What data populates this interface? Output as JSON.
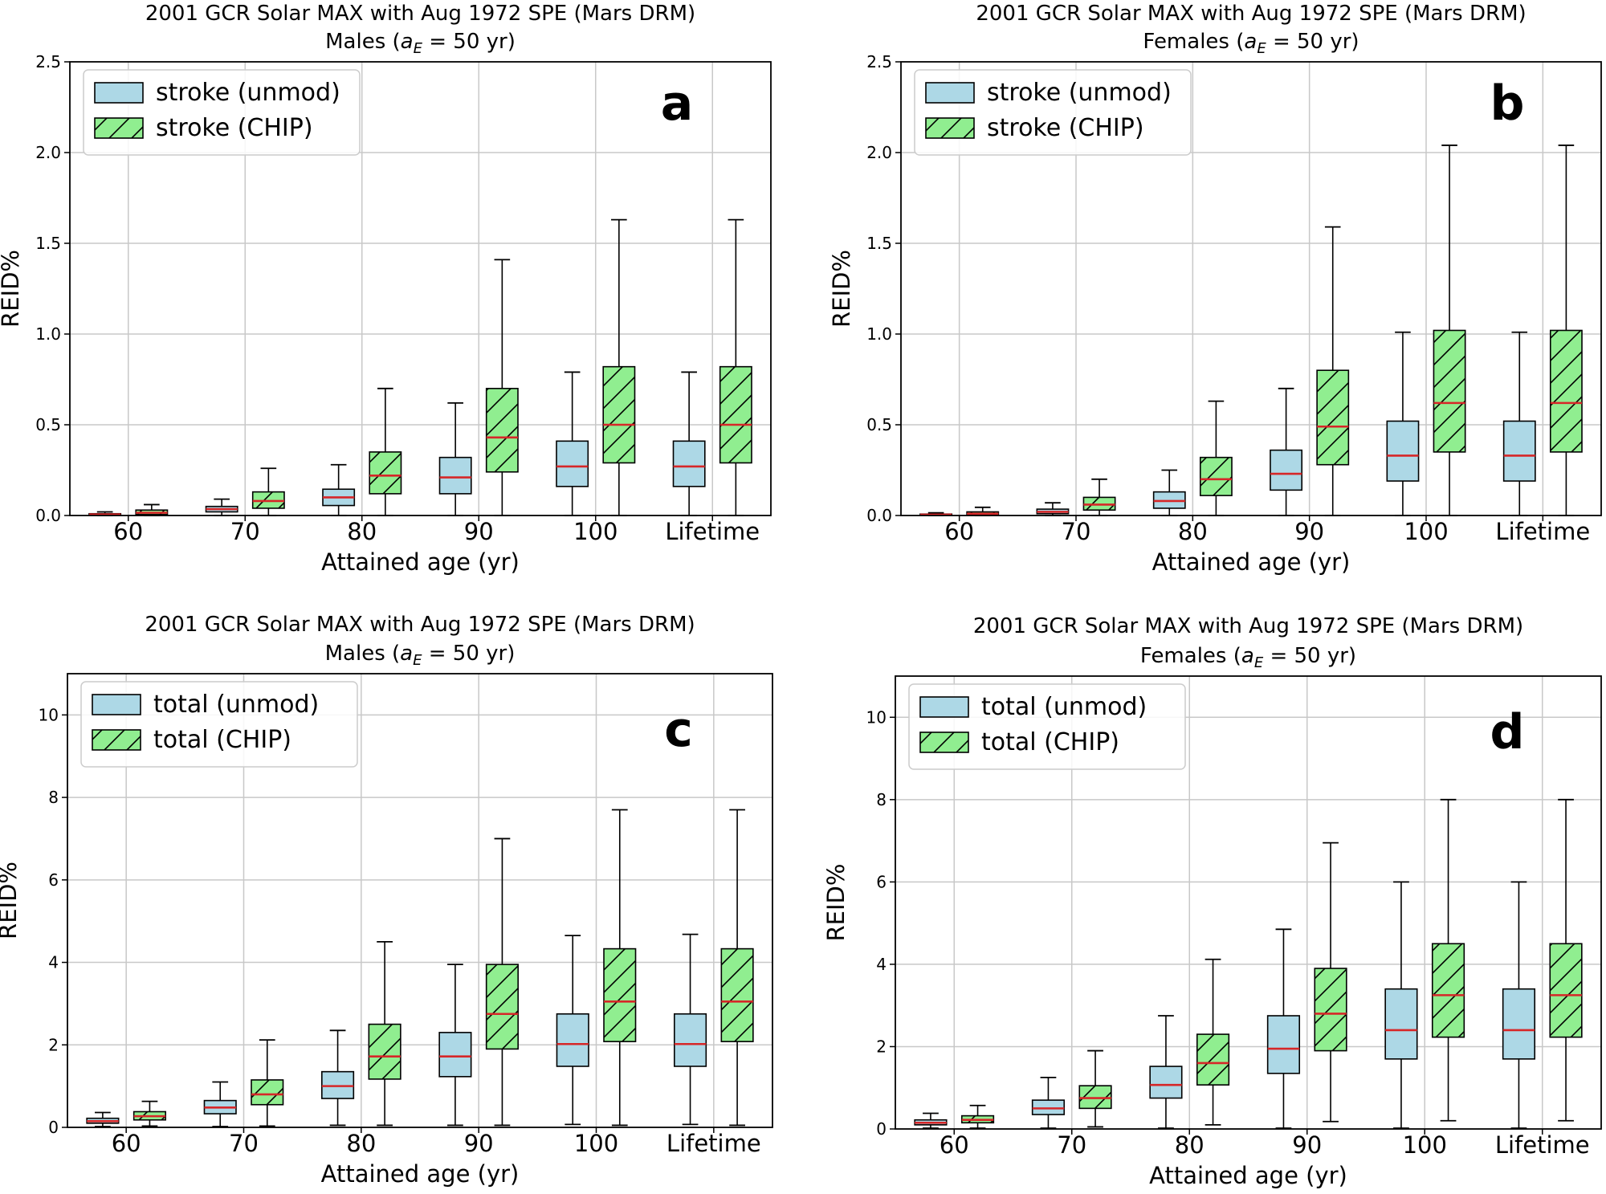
{
  "chart_data": [
    {
      "type": "boxplot",
      "panel_letter": "a",
      "title": "2001 GCR Solar MAX with Aug 1972 SPE (Mars DRM)",
      "subtitle_prefix": "Males  (",
      "subtitle_var": "a",
      "subtitle_sub": "E",
      "subtitle_suffix": " =  50 yr)",
      "xlabel": "Attained age (yr)",
      "ylabel": "REID%",
      "ylim": [
        0,
        2.5
      ],
      "yticks": [
        "0.0",
        "0.5",
        "1.0",
        "1.5",
        "2.0",
        "2.5"
      ],
      "categories": [
        "60",
        "70",
        "80",
        "90",
        "100",
        "Lifetime"
      ],
      "legend": [
        "stroke (unmod)",
        "stroke (CHIP)"
      ],
      "series": [
        {
          "name": "stroke (unmod)",
          "color": "#add8e6",
          "hatch": false,
          "boxes": [
            {
              "whislo": 0,
              "q1": 0.003,
              "med": 0.006,
              "q3": 0.01,
              "whishi": 0.02
            },
            {
              "whislo": 0,
              "q1": 0.02,
              "med": 0.035,
              "q3": 0.05,
              "whishi": 0.09
            },
            {
              "whislo": 0,
              "q1": 0.055,
              "med": 0.1,
              "q3": 0.145,
              "whishi": 0.28
            },
            {
              "whislo": 0,
              "q1": 0.12,
              "med": 0.21,
              "q3": 0.32,
              "whishi": 0.62
            },
            {
              "whislo": 0,
              "q1": 0.16,
              "med": 0.27,
              "q3": 0.41,
              "whishi": 0.79
            },
            {
              "whislo": 0,
              "q1": 0.16,
              "med": 0.27,
              "q3": 0.41,
              "whishi": 0.79
            }
          ]
        },
        {
          "name": "stroke (CHIP)",
          "color": "#90ee90",
          "hatch": true,
          "boxes": [
            {
              "whislo": 0,
              "q1": 0.005,
              "med": 0.015,
              "q3": 0.03,
              "whishi": 0.06
            },
            {
              "whislo": 0,
              "q1": 0.04,
              "med": 0.08,
              "q3": 0.13,
              "whishi": 0.26
            },
            {
              "whislo": 0,
              "q1": 0.12,
              "med": 0.22,
              "q3": 0.35,
              "whishi": 0.7
            },
            {
              "whislo": 0,
              "q1": 0.24,
              "med": 0.43,
              "q3": 0.7,
              "whishi": 1.41
            },
            {
              "whislo": 0,
              "q1": 0.29,
              "med": 0.5,
              "q3": 0.82,
              "whishi": 1.63
            },
            {
              "whislo": 0,
              "q1": 0.29,
              "med": 0.5,
              "q3": 0.82,
              "whishi": 1.63
            }
          ]
        }
      ]
    },
    {
      "type": "boxplot",
      "panel_letter": "b",
      "title": "2001 GCR Solar MAX with Aug 1972 SPE (Mars DRM)",
      "subtitle_prefix": "Females  (",
      "subtitle_var": "a",
      "subtitle_sub": "E",
      "subtitle_suffix": " =  50 yr)",
      "xlabel": "Attained age (yr)",
      "ylabel": "REID%",
      "ylim": [
        0,
        2.5
      ],
      "yticks": [
        "0.0",
        "0.5",
        "1.0",
        "1.5",
        "2.0",
        "2.5"
      ],
      "categories": [
        "60",
        "70",
        "80",
        "90",
        "100",
        "Lifetime"
      ],
      "legend": [
        "stroke (unmod)",
        "stroke (CHIP)"
      ],
      "series": [
        {
          "name": "stroke (unmod)",
          "color": "#add8e6",
          "hatch": false,
          "boxes": [
            {
              "whislo": 0,
              "q1": 0.002,
              "med": 0.005,
              "q3": 0.008,
              "whishi": 0.015
            },
            {
              "whislo": 0,
              "q1": 0.01,
              "med": 0.02,
              "q3": 0.035,
              "whishi": 0.07
            },
            {
              "whislo": 0,
              "q1": 0.04,
              "med": 0.08,
              "q3": 0.13,
              "whishi": 0.25
            },
            {
              "whislo": 0,
              "q1": 0.14,
              "med": 0.23,
              "q3": 0.36,
              "whishi": 0.7
            },
            {
              "whislo": 0,
              "q1": 0.19,
              "med": 0.33,
              "q3": 0.52,
              "whishi": 1.01
            },
            {
              "whislo": 0,
              "q1": 0.19,
              "med": 0.33,
              "q3": 0.52,
              "whishi": 1.01
            }
          ]
        },
        {
          "name": "stroke (CHIP)",
          "color": "#90ee90",
          "hatch": true,
          "boxes": [
            {
              "whislo": 0,
              "q1": 0.004,
              "med": 0.01,
              "q3": 0.02,
              "whishi": 0.045
            },
            {
              "whislo": 0,
              "q1": 0.03,
              "med": 0.06,
              "q3": 0.1,
              "whishi": 0.2
            },
            {
              "whislo": 0,
              "q1": 0.11,
              "med": 0.2,
              "q3": 0.32,
              "whishi": 0.63
            },
            {
              "whislo": 0,
              "q1": 0.28,
              "med": 0.49,
              "q3": 0.8,
              "whishi": 1.59
            },
            {
              "whislo": 0,
              "q1": 0.35,
              "med": 0.62,
              "q3": 1.02,
              "whishi": 2.04
            },
            {
              "whislo": 0,
              "q1": 0.35,
              "med": 0.62,
              "q3": 1.02,
              "whishi": 2.04
            }
          ]
        }
      ]
    },
    {
      "type": "boxplot",
      "panel_letter": "c",
      "title": "2001 GCR Solar MAX with Aug 1972 SPE (Mars DRM)",
      "subtitle_prefix": "Males  (",
      "subtitle_var": "a",
      "subtitle_sub": "E",
      "subtitle_suffix": " =  50 yr)",
      "xlabel": "Attained age (yr)",
      "ylabel": "REID%",
      "ylim": [
        0,
        11
      ],
      "yticks": [
        "0",
        "2",
        "4",
        "6",
        "8",
        "10"
      ],
      "categories": [
        "60",
        "70",
        "80",
        "90",
        "100",
        "Lifetime"
      ],
      "legend": [
        "total (unmod)",
        "total (CHIP)"
      ],
      "series": [
        {
          "name": "total (unmod)",
          "color": "#add8e6",
          "hatch": false,
          "boxes": [
            {
              "whislo": 0.02,
              "q1": 0.1,
              "med": 0.15,
              "q3": 0.22,
              "whishi": 0.36
            },
            {
              "whislo": 0.02,
              "q1": 0.33,
              "med": 0.48,
              "q3": 0.65,
              "whishi": 1.1
            },
            {
              "whislo": 0.05,
              "q1": 0.7,
              "med": 1.0,
              "q3": 1.35,
              "whishi": 2.35
            },
            {
              "whislo": 0.05,
              "q1": 1.23,
              "med": 1.72,
              "q3": 2.3,
              "whishi": 3.95
            },
            {
              "whislo": 0.07,
              "q1": 1.48,
              "med": 2.02,
              "q3": 2.75,
              "whishi": 4.65
            },
            {
              "whislo": 0.07,
              "q1": 1.48,
              "med": 2.02,
              "q3": 2.75,
              "whishi": 4.68
            }
          ]
        },
        {
          "name": "total (CHIP)",
          "color": "#90ee90",
          "hatch": true,
          "boxes": [
            {
              "whislo": 0.03,
              "q1": 0.18,
              "med": 0.27,
              "q3": 0.38,
              "whishi": 0.63
            },
            {
              "whislo": 0.03,
              "q1": 0.55,
              "med": 0.8,
              "q3": 1.15,
              "whishi": 2.12
            },
            {
              "whislo": 0.05,
              "q1": 1.17,
              "med": 1.72,
              "q3": 2.5,
              "whishi": 4.5
            },
            {
              "whislo": 0.05,
              "q1": 1.9,
              "med": 2.75,
              "q3": 3.95,
              "whishi": 7.0
            },
            {
              "whislo": 0.05,
              "q1": 2.08,
              "med": 3.05,
              "q3": 4.33,
              "whishi": 7.7
            },
            {
              "whislo": 0.05,
              "q1": 2.08,
              "med": 3.05,
              "q3": 4.33,
              "whishi": 7.7
            }
          ]
        }
      ]
    },
    {
      "type": "boxplot",
      "panel_letter": "d",
      "title": "2001 GCR Solar MAX with Aug 1972 SPE (Mars DRM)",
      "subtitle_prefix": "Females  (",
      "subtitle_var": "a",
      "subtitle_sub": "E",
      "subtitle_suffix": " =  50 yr)",
      "xlabel": "Attained age (yr)",
      "ylabel": "REID%",
      "ylim": [
        0,
        11
      ],
      "yticks": [
        "0",
        "2",
        "4",
        "6",
        "8",
        "10"
      ],
      "categories": [
        "60",
        "70",
        "80",
        "90",
        "100",
        "Lifetime"
      ],
      "legend": [
        "total (unmod)",
        "total (CHIP)"
      ],
      "series": [
        {
          "name": "total (unmod)",
          "color": "#add8e6",
          "hatch": false,
          "boxes": [
            {
              "whislo": 0.02,
              "q1": 0.1,
              "med": 0.15,
              "q3": 0.22,
              "whishi": 0.38
            },
            {
              "whislo": 0.02,
              "q1": 0.35,
              "med": 0.5,
              "q3": 0.7,
              "whishi": 1.25
            },
            {
              "whislo": 0.02,
              "q1": 0.75,
              "med": 1.07,
              "q3": 1.52,
              "whishi": 2.75
            },
            {
              "whislo": 0.02,
              "q1": 1.35,
              "med": 1.95,
              "q3": 2.75,
              "whishi": 4.85
            },
            {
              "whislo": 0.02,
              "q1": 1.7,
              "med": 2.4,
              "q3": 3.4,
              "whishi": 6.0
            },
            {
              "whislo": 0.02,
              "q1": 1.7,
              "med": 2.4,
              "q3": 3.4,
              "whishi": 6.0
            }
          ]
        },
        {
          "name": "total (CHIP)",
          "color": "#90ee90",
          "hatch": true,
          "boxes": [
            {
              "whislo": 0.02,
              "q1": 0.15,
              "med": 0.22,
              "q3": 0.32,
              "whishi": 0.57
            },
            {
              "whislo": 0.05,
              "q1": 0.5,
              "med": 0.75,
              "q3": 1.05,
              "whishi": 1.9
            },
            {
              "whislo": 0.1,
              "q1": 1.07,
              "med": 1.6,
              "q3": 2.3,
              "whishi": 4.12
            },
            {
              "whislo": 0.18,
              "q1": 1.9,
              "med": 2.8,
              "q3": 3.9,
              "whishi": 6.95
            },
            {
              "whislo": 0.2,
              "q1": 2.23,
              "med": 3.25,
              "q3": 4.5,
              "whishi": 8.0
            },
            {
              "whislo": 0.2,
              "q1": 2.23,
              "med": 3.25,
              "q3": 4.5,
              "whishi": 8.0
            }
          ]
        }
      ]
    }
  ]
}
